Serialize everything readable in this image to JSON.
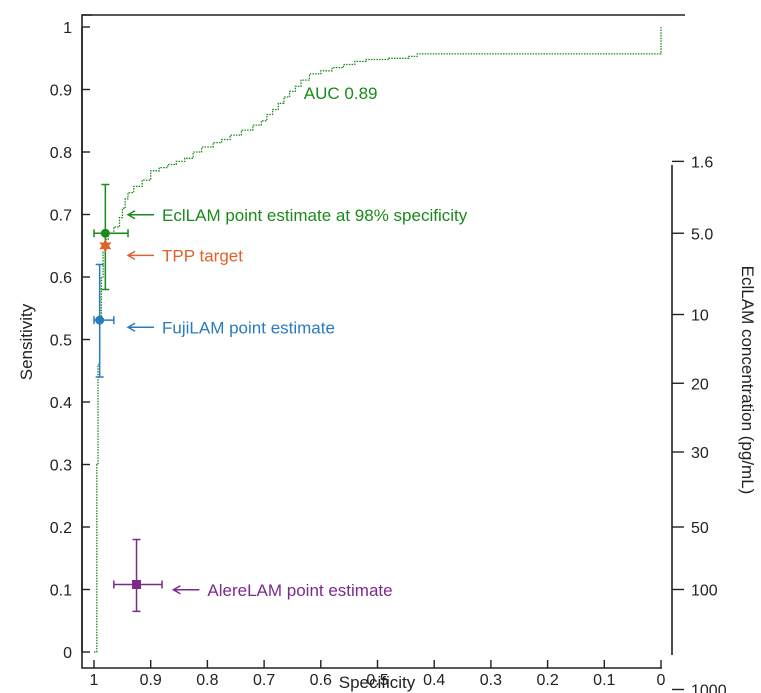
{
  "chart_data": {
    "type": "line",
    "xlabel": "Specificity",
    "ylabel": "Sensitivity",
    "y2label": "EclLAM concentration  (pg/mL)",
    "xlim": [
      1,
      0
    ],
    "ylim": [
      0,
      1
    ],
    "x_ticks": [
      "1",
      "0.9",
      "0.8",
      "0.7",
      "0.6",
      "0.5",
      "0.4",
      "0.3",
      "0.2",
      "0.1",
      "0"
    ],
    "x_tick_values": [
      1,
      0.9,
      0.8,
      0.7,
      0.6,
      0.5,
      0.4,
      0.3,
      0.2,
      0.1,
      0
    ],
    "y_ticks": [
      "0",
      "0.1",
      "0.2",
      "0.3",
      "0.4",
      "0.5",
      "0.6",
      "0.7",
      "0.8",
      "0.9",
      "1"
    ],
    "y_tick_values": [
      0,
      0.1,
      0.2,
      0.3,
      0.4,
      0.5,
      0.6,
      0.7,
      0.8,
      0.9,
      1
    ],
    "y2_ticks": [
      {
        "label": "1.6",
        "sensitivity": 0.785
      },
      {
        "label": "5.0",
        "sensitivity": 0.67
      },
      {
        "label": "10",
        "sensitivity": 0.54
      },
      {
        "label": "20",
        "sensitivity": 0.43
      },
      {
        "label": "30",
        "sensitivity": 0.32
      },
      {
        "label": "50",
        "sensitivity": 0.2
      },
      {
        "label": "100",
        "sensitivity": 0.1
      },
      {
        "label": "1000",
        "sensitivity": -0.06
      }
    ],
    "roc_curve": {
      "color": "#1a8a1a",
      "points": [
        [
          1.0,
          0.0
        ],
        [
          0.995,
          0.0
        ],
        [
          0.995,
          0.3
        ],
        [
          0.993,
          0.3
        ],
        [
          0.993,
          0.46
        ],
        [
          0.99,
          0.46
        ],
        [
          0.99,
          0.53
        ],
        [
          0.987,
          0.53
        ],
        [
          0.987,
          0.6
        ],
        [
          0.984,
          0.6
        ],
        [
          0.984,
          0.64
        ],
        [
          0.98,
          0.64
        ],
        [
          0.98,
          0.66
        ],
        [
          0.975,
          0.66
        ],
        [
          0.975,
          0.67
        ],
        [
          0.965,
          0.67
        ],
        [
          0.965,
          0.68
        ],
        [
          0.955,
          0.68
        ],
        [
          0.955,
          0.695
        ],
        [
          0.95,
          0.695
        ],
        [
          0.95,
          0.71
        ],
        [
          0.945,
          0.71
        ],
        [
          0.945,
          0.725
        ],
        [
          0.94,
          0.725
        ],
        [
          0.94,
          0.735
        ],
        [
          0.93,
          0.735
        ],
        [
          0.93,
          0.745
        ],
        [
          0.915,
          0.745
        ],
        [
          0.915,
          0.755
        ],
        [
          0.9,
          0.755
        ],
        [
          0.9,
          0.77
        ],
        [
          0.885,
          0.77
        ],
        [
          0.885,
          0.775
        ],
        [
          0.87,
          0.775
        ],
        [
          0.87,
          0.78
        ],
        [
          0.855,
          0.78
        ],
        [
          0.855,
          0.785
        ],
        [
          0.84,
          0.785
        ],
        [
          0.84,
          0.79
        ],
        [
          0.825,
          0.79
        ],
        [
          0.825,
          0.8
        ],
        [
          0.81,
          0.8
        ],
        [
          0.81,
          0.808
        ],
        [
          0.79,
          0.808
        ],
        [
          0.79,
          0.815
        ],
        [
          0.775,
          0.815
        ],
        [
          0.775,
          0.82
        ],
        [
          0.76,
          0.82
        ],
        [
          0.76,
          0.827
        ],
        [
          0.74,
          0.827
        ],
        [
          0.74,
          0.835
        ],
        [
          0.72,
          0.835
        ],
        [
          0.72,
          0.843
        ],
        [
          0.705,
          0.843
        ],
        [
          0.705,
          0.85
        ],
        [
          0.695,
          0.85
        ],
        [
          0.695,
          0.86
        ],
        [
          0.685,
          0.86
        ],
        [
          0.685,
          0.868
        ],
        [
          0.675,
          0.868
        ],
        [
          0.675,
          0.878
        ],
        [
          0.665,
          0.878
        ],
        [
          0.665,
          0.888
        ],
        [
          0.655,
          0.888
        ],
        [
          0.655,
          0.897
        ],
        [
          0.645,
          0.897
        ],
        [
          0.645,
          0.905
        ],
        [
          0.635,
          0.905
        ],
        [
          0.635,
          0.915
        ],
        [
          0.62,
          0.915
        ],
        [
          0.62,
          0.925
        ],
        [
          0.6,
          0.925
        ],
        [
          0.6,
          0.93
        ],
        [
          0.58,
          0.93
        ],
        [
          0.58,
          0.935
        ],
        [
          0.56,
          0.935
        ],
        [
          0.56,
          0.94
        ],
        [
          0.54,
          0.94
        ],
        [
          0.54,
          0.945
        ],
        [
          0.52,
          0.945
        ],
        [
          0.52,
          0.948
        ],
        [
          0.48,
          0.948
        ],
        [
          0.48,
          0.95
        ],
        [
          0.445,
          0.95
        ],
        [
          0.445,
          0.953
        ],
        [
          0.43,
          0.953
        ],
        [
          0.43,
          0.957
        ],
        [
          0.0,
          0.957
        ],
        [
          0.0,
          1.0
        ]
      ]
    },
    "annotations": [
      {
        "text": "AUC 0.89",
        "color": "#1a8a1a",
        "x": 0.63,
        "y": 0.885
      },
      {
        "text": "EclLAM point estimate at 98% specificity",
        "color": "#1a8a1a",
        "x": 0.88,
        "y": 0.69
      },
      {
        "text": "TPP target",
        "color": "#e0612a",
        "x": 0.88,
        "y": 0.625
      },
      {
        "text": "FujiLAM point estimate",
        "color": "#2a7bbd",
        "x": 0.88,
        "y": 0.51
      },
      {
        "text": "AlereLAM point estimate",
        "color": "#7b2a8c",
        "x": 0.8,
        "y": 0.09
      }
    ],
    "point_estimates": [
      {
        "name": "EclLAM",
        "shape": "circle",
        "color": "#1a8a1a",
        "specificity": 0.98,
        "sensitivity": 0.67,
        "spec_ci": [
          0.94,
          1.0
        ],
        "sens_ci": [
          0.58,
          0.748
        ]
      },
      {
        "name": "TPP target",
        "shape": "star",
        "color": "#e0612a",
        "specificity": 0.98,
        "sensitivity": 0.65,
        "spec_ci": null,
        "sens_ci": null
      },
      {
        "name": "FujiLAM",
        "shape": "circle",
        "color": "#2a7bbd",
        "specificity": 0.99,
        "sensitivity": 0.531,
        "spec_ci": [
          0.965,
          1.0
        ],
        "sens_ci": [
          0.44,
          0.62
        ]
      },
      {
        "name": "AlereLAM",
        "shape": "square",
        "color": "#7b2a8c",
        "specificity": 0.925,
        "sensitivity": 0.108,
        "spec_ci": [
          0.88,
          0.965
        ],
        "sens_ci": [
          0.065,
          0.18
        ]
      }
    ]
  }
}
